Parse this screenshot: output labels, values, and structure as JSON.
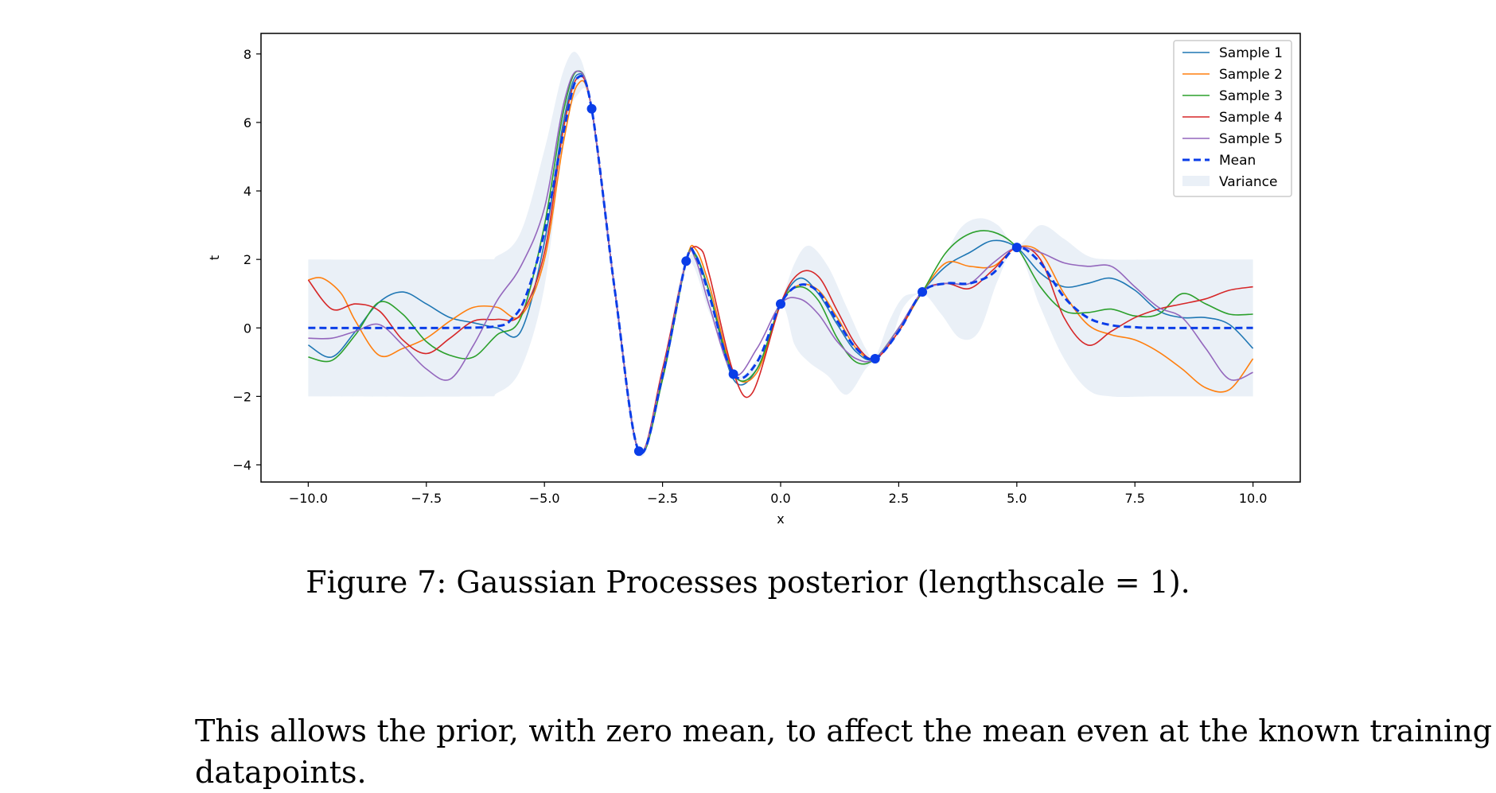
{
  "figure": {
    "caption": "Figure 7: Gaussian Processes posterior (lengthscale = 1)."
  },
  "paragraph": {
    "text": "This allows the prior, with zero mean, to affect the mean even at the known training datapoints."
  },
  "chart_data": {
    "type": "line",
    "xlabel": "x",
    "ylabel": "t",
    "xlim": [
      -11,
      11
    ],
    "ylim": [
      -4.5,
      8.6
    ],
    "xticks": [
      -10.0,
      -7.5,
      -5.0,
      -2.5,
      0.0,
      2.5,
      5.0,
      7.5,
      10.0
    ],
    "xtick_labels": [
      "−10.0",
      "−7.5",
      "−5.0",
      "−2.5",
      "0.0",
      "2.5",
      "5.0",
      "7.5",
      "10.0"
    ],
    "yticks": [
      -4,
      -2,
      0,
      2,
      4,
      6,
      8
    ],
    "ytick_labels": [
      "−4",
      "−2",
      "0",
      "2",
      "4",
      "6",
      "8"
    ],
    "legend_position": "top-right",
    "colors": {
      "sample1": "#1f77b4",
      "sample2": "#ff7f0e",
      "sample3": "#2ca02c",
      "sample4": "#d62728",
      "sample5": "#9467bd",
      "mean": "#0a3de8",
      "variance": "#eaf0f7",
      "points": "#0a3de8"
    },
    "training_points": {
      "x": [
        -4,
        -3,
        -2,
        -1,
        0,
        2,
        3,
        5
      ],
      "y": [
        6.4,
        -3.6,
        1.95,
        -1.35,
        0.7,
        -0.9,
        1.05,
        2.35
      ]
    },
    "series": [
      {
        "name": "Sample 1",
        "key": "sample1",
        "x": [
          -10,
          -9.5,
          -9,
          -8.5,
          -8,
          -7.5,
          -7,
          -6.5,
          -6,
          -5.5,
          -5,
          -4.6,
          -4.3,
          -4,
          -3.5,
          -3,
          -2.5,
          -2,
          -1.8,
          -1.5,
          -1,
          -0.5,
          0,
          0.4,
          0.8,
          1.2,
          1.6,
          2,
          2.5,
          3,
          3.5,
          4,
          4.5,
          5,
          5.5,
          6,
          6.5,
          7,
          7.5,
          8,
          8.5,
          9,
          9.5,
          10
        ],
        "y": [
          -0.5,
          -0.85,
          -0.1,
          0.75,
          1.05,
          0.7,
          0.3,
          0.15,
          0.0,
          -0.1,
          2.5,
          6.0,
          7.4,
          6.4,
          1.0,
          -3.6,
          -1.5,
          1.95,
          2.15,
          1.0,
          -1.5,
          -1.2,
          0.7,
          1.45,
          1.0,
          0.1,
          -0.7,
          -0.9,
          0.0,
          1.05,
          1.8,
          2.2,
          2.55,
          2.35,
          1.6,
          1.2,
          1.3,
          1.45,
          1.1,
          0.5,
          0.3,
          0.3,
          0.1,
          -0.6
        ]
      },
      {
        "name": "Sample 2",
        "key": "sample2",
        "x": [
          -10,
          -9.7,
          -9.3,
          -9,
          -8.5,
          -8,
          -7.5,
          -7,
          -6.5,
          -6,
          -5.5,
          -5,
          -4.6,
          -4.3,
          -4,
          -3.5,
          -3,
          -2.5,
          -2,
          -1.8,
          -1.5,
          -1,
          -0.5,
          0,
          0.4,
          0.8,
          1.2,
          1.6,
          2,
          2.5,
          3,
          3.5,
          4,
          4.5,
          5,
          5.5,
          6,
          6.5,
          7,
          7.5,
          8,
          8.5,
          9,
          9.5,
          10
        ],
        "y": [
          1.4,
          1.45,
          1.0,
          0.2,
          -0.8,
          -0.6,
          -0.3,
          0.2,
          0.6,
          0.6,
          0.35,
          2.0,
          5.4,
          7.1,
          6.4,
          1.0,
          -3.6,
          -1.4,
          1.95,
          2.3,
          1.2,
          -1.3,
          -1.3,
          0.7,
          1.25,
          1.1,
          0.3,
          -0.6,
          -0.9,
          -0.1,
          1.05,
          1.9,
          1.8,
          1.8,
          2.35,
          2.2,
          1.0,
          0.1,
          -0.2,
          -0.35,
          -0.7,
          -1.2,
          -1.75,
          -1.8,
          -0.9
        ]
      },
      {
        "name": "Sample 3",
        "key": "sample3",
        "x": [
          -10,
          -9.5,
          -9,
          -8.5,
          -8,
          -7.5,
          -7,
          -6.5,
          -6,
          -5.5,
          -5,
          -4.6,
          -4.3,
          -4,
          -3.5,
          -3,
          -2.5,
          -2,
          -1.8,
          -1.5,
          -1,
          -0.5,
          0,
          0.4,
          0.8,
          1.2,
          1.6,
          2,
          2.5,
          3,
          3.5,
          4,
          4.5,
          5,
          5.5,
          6,
          6.5,
          7,
          7.5,
          8,
          8.5,
          9,
          9.5,
          10
        ],
        "y": [
          -0.85,
          -0.95,
          -0.2,
          0.75,
          0.4,
          -0.4,
          -0.8,
          -0.85,
          -0.2,
          0.3,
          3.0,
          6.3,
          7.5,
          6.4,
          1.0,
          -3.6,
          -1.5,
          1.95,
          2.1,
          1.0,
          -1.35,
          -1.2,
          0.7,
          1.2,
          0.8,
          -0.3,
          -1.0,
          -0.9,
          0.0,
          1.05,
          2.2,
          2.75,
          2.8,
          2.35,
          1.2,
          0.5,
          0.45,
          0.55,
          0.35,
          0.4,
          1.0,
          0.7,
          0.4,
          0.4
        ]
      },
      {
        "name": "Sample 4",
        "key": "sample4",
        "x": [
          -10,
          -9.5,
          -9,
          -8.5,
          -8,
          -7.5,
          -7,
          -6.5,
          -6,
          -5.5,
          -5,
          -4.6,
          -4.3,
          -4,
          -3.5,
          -3,
          -2.5,
          -2,
          -1.7,
          -1.5,
          -1,
          -0.6,
          0,
          0.4,
          0.8,
          1.2,
          1.6,
          2,
          2.5,
          3,
          3.5,
          4,
          4.5,
          5,
          5.5,
          6,
          6.5,
          7,
          7.5,
          8,
          8.5,
          9,
          9.5,
          10
        ],
        "y": [
          1.4,
          0.55,
          0.7,
          0.5,
          -0.35,
          -0.75,
          -0.3,
          0.2,
          0.25,
          0.4,
          2.2,
          5.8,
          7.3,
          6.4,
          1.0,
          -3.6,
          -1.2,
          1.95,
          2.3,
          1.5,
          -1.3,
          -1.9,
          0.7,
          1.6,
          1.5,
          0.5,
          -0.5,
          -0.9,
          -0.1,
          1.05,
          1.3,
          1.15,
          1.7,
          2.35,
          2.0,
          0.3,
          -0.5,
          -0.1,
          0.3,
          0.55,
          0.7,
          0.85,
          1.1,
          1.2
        ]
      },
      {
        "name": "Sample 5",
        "key": "sample5",
        "x": [
          -10,
          -9.5,
          -9,
          -8.5,
          -8,
          -7.5,
          -7,
          -6.5,
          -6,
          -5.5,
          -5,
          -4.6,
          -4.3,
          -4,
          -3.5,
          -3,
          -2.5,
          -2,
          -1.8,
          -1.5,
          -1,
          -0.5,
          0,
          0.4,
          0.8,
          1.2,
          1.6,
          2,
          2.5,
          3,
          3.5,
          4,
          4.5,
          5,
          5.5,
          6,
          6.5,
          7,
          7.5,
          8,
          8.5,
          9,
          9.5,
          10
        ],
        "y": [
          -0.3,
          -0.3,
          -0.1,
          0.1,
          -0.5,
          -1.2,
          -1.5,
          -0.5,
          0.8,
          1.8,
          3.5,
          6.5,
          7.5,
          6.4,
          1.0,
          -3.6,
          -1.3,
          1.95,
          2.0,
          0.6,
          -1.35,
          -0.6,
          0.7,
          0.85,
          0.4,
          -0.4,
          -0.9,
          -0.9,
          0.0,
          1.05,
          1.3,
          1.3,
          1.9,
          2.35,
          2.2,
          1.9,
          1.8,
          1.8,
          1.2,
          0.6,
          0.3,
          -0.6,
          -1.5,
          -1.3
        ]
      },
      {
        "name": "Mean",
        "key": "mean",
        "dashed": true,
        "x": [
          -10,
          -7,
          -6,
          -5.7,
          -5.4,
          -5,
          -4.6,
          -4.3,
          -4,
          -3.5,
          -3,
          -2.5,
          -2,
          -1.8,
          -1.5,
          -1,
          -0.5,
          0,
          0.4,
          0.8,
          1.2,
          1.6,
          2,
          2.5,
          3,
          3.5,
          4,
          4.5,
          5,
          5.5,
          6,
          6.5,
          7,
          7.5,
          8,
          10
        ],
        "y": [
          0,
          0,
          0.05,
          0.25,
          0.9,
          2.8,
          5.7,
          7.3,
          6.4,
          1.0,
          -3.6,
          -1.4,
          1.95,
          2.1,
          0.9,
          -1.35,
          -1.0,
          0.7,
          1.25,
          1.05,
          0.2,
          -0.6,
          -0.9,
          -0.1,
          1.05,
          1.3,
          1.3,
          1.6,
          2.35,
          1.9,
          0.9,
          0.3,
          0.08,
          0.02,
          0.0,
          0.0
        ]
      }
    ],
    "variance": {
      "name": "Variance",
      "x": [
        -10,
        -6.5,
        -6,
        -5.5,
        -5,
        -4.6,
        -4.3,
        -4,
        -3.5,
        -3,
        -2.5,
        -2,
        -1.5,
        -1,
        -0.5,
        0,
        0.3,
        0.6,
        1.0,
        1.4,
        1.8,
        2,
        2.3,
        2.6,
        3,
        3.4,
        3.8,
        4.2,
        4.6,
        5,
        5.5,
        6,
        6.5,
        7,
        8,
        10
      ],
      "upper": [
        2,
        2,
        2.1,
        2.8,
        5.2,
        7.5,
        8.0,
        6.45,
        1.2,
        -3.5,
        -1.2,
        2.0,
        1.3,
        -1.25,
        -0.9,
        0.75,
        1.9,
        2.4,
        1.8,
        0.6,
        -0.6,
        -0.85,
        0.2,
        0.9,
        1.1,
        1.9,
        2.9,
        3.2,
        3.0,
        2.4,
        3.0,
        2.6,
        2.1,
        2.0,
        2.0,
        2.0
      ],
      "lower": [
        -2,
        -2,
        -1.9,
        -1.2,
        1.2,
        5.5,
        6.8,
        6.35,
        0.8,
        -3.7,
        -1.6,
        1.9,
        0.4,
        -1.45,
        -1.2,
        0.65,
        -0.5,
        -1.0,
        -1.4,
        -1.95,
        -1.2,
        -0.95,
        -0.5,
        0.6,
        1.0,
        0.4,
        -0.3,
        -0.1,
        1.4,
        2.3,
        0.6,
        -0.9,
        -1.8,
        -2.0,
        -2.0,
        -2.0
      ]
    },
    "legend": [
      "Sample 1",
      "Sample 2",
      "Sample 3",
      "Sample 4",
      "Sample 5",
      "Mean",
      "Variance"
    ]
  }
}
